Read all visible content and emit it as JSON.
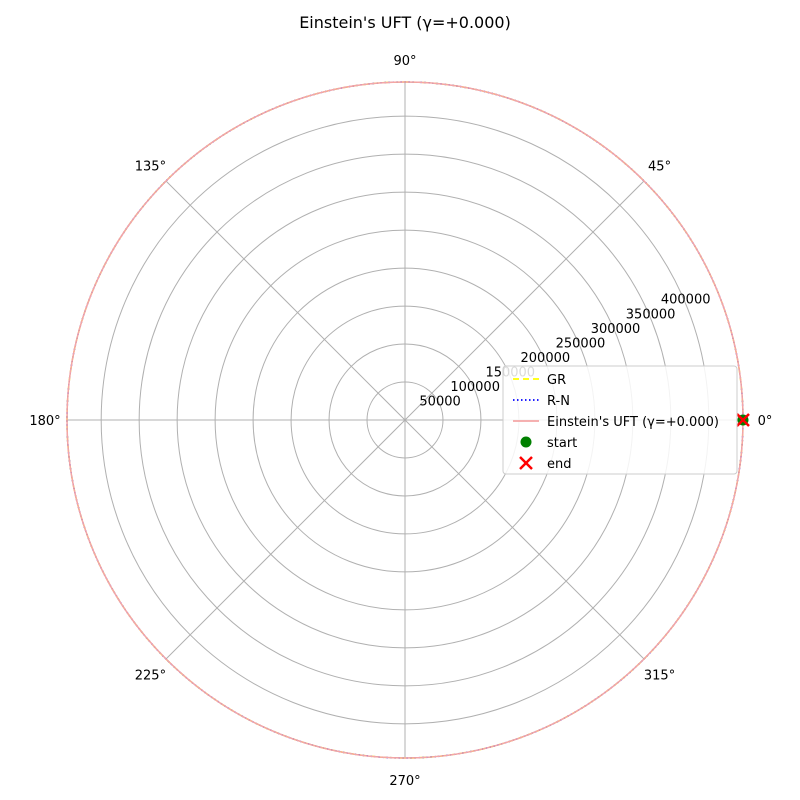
{
  "chart_data": {
    "type": "polar",
    "title": "Einstein's UFT (γ=+0.000)",
    "angle_ticks": [
      "0°",
      "45°",
      "90°",
      "135°",
      "180°",
      "225°",
      "270°",
      "315°"
    ],
    "angle_tick_values_deg": [
      0,
      45,
      90,
      135,
      180,
      225,
      270,
      315
    ],
    "radial_ticks": [
      50000,
      100000,
      150000,
      200000,
      250000,
      300000,
      350000,
      400000
    ],
    "radial_tick_labels": [
      "50000",
      "100000",
      "150000",
      "200000",
      "250000",
      "300000",
      "350000",
      "400000"
    ],
    "rlim": [
      0,
      445000
    ],
    "grid": true,
    "legend_position": "center-right",
    "series": [
      {
        "name": "GR",
        "style": "dashed",
        "color": "#ffff00",
        "r": 445000,
        "theta_range_deg": [
          0,
          360
        ]
      },
      {
        "name": "R-N",
        "style": "dotted",
        "color": "#0000ff",
        "r": 445000,
        "theta_range_deg": [
          0,
          360
        ]
      },
      {
        "name": "Einstein's UFT (γ=+0.000)",
        "style": "solid",
        "color": "#f4a6a6",
        "r": 445000,
        "theta_range_deg": [
          0,
          360
        ]
      }
    ],
    "markers": [
      {
        "name": "start",
        "marker": "circle",
        "color": "#008000",
        "r": 445000,
        "theta_deg": 0
      },
      {
        "name": "end",
        "marker": "x",
        "color": "#ff0000",
        "r": 445000,
        "theta_deg": 0
      }
    ]
  }
}
